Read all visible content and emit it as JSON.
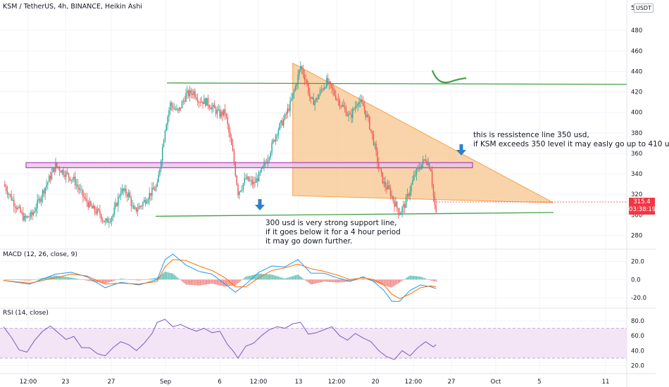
{
  "header": {
    "title": "KSM / TetherUS, 4h, BINANCE, Heikin Ashi",
    "currency": "USDT",
    "top_tick": "5"
  },
  "annotations": {
    "resistance": [
      "this is ressistence line 350 usd,",
      "if KSM exceeds 350 level it may easly go up to 410 u"
    ],
    "support": [
      "300 usd is very strong support line,",
      "if it goes below it for a 4 hour period",
      "it may go down further."
    ]
  },
  "last_price": {
    "value": "315.4",
    "countdown": "03:38:19"
  },
  "colors": {
    "up": "#26a69a",
    "down": "#ef5350",
    "trend_line": "#43a047",
    "triangle_fill": "#f7c58e",
    "triangle_stroke": "#f5a04a",
    "zone_fill": "#e7c3ea",
    "zone_stroke": "#9c27b0",
    "macd_line": "#2196f3",
    "signal_line": "#ff6d00",
    "rsi_line": "#7e57c2",
    "rsi_band": "#f3e5f5",
    "arrow": "#2f80c8"
  },
  "chart_data": [
    {
      "type": "candlestick",
      "title": "KSM / TetherUS, 4h, BINANCE, Heikin Ashi",
      "y_ticks": [
        280,
        300,
        320,
        340,
        360,
        380,
        400,
        420,
        440,
        460,
        480
      ],
      "ylim": [
        268,
        500
      ],
      "x_tick_labels": [
        "12:00",
        "23",
        "27",
        "Sep",
        "6",
        "12:00",
        "13",
        "12:00",
        "20",
        "12:00",
        "27",
        "Oct",
        "5",
        "11"
      ],
      "price_path": [
        [
          0,
          330
        ],
        [
          8,
          312
        ],
        [
          16,
          296
        ],
        [
          22,
          300
        ],
        [
          30,
          322
        ],
        [
          40,
          348
        ],
        [
          46,
          342
        ],
        [
          54,
          334
        ],
        [
          62,
          316
        ],
        [
          68,
          306
        ],
        [
          74,
          301
        ],
        [
          78,
          292
        ],
        [
          84,
          300
        ],
        [
          90,
          324
        ],
        [
          96,
          320
        ],
        [
          100,
          303
        ],
        [
          106,
          310
        ],
        [
          112,
          320
        ],
        [
          118,
          328
        ],
        [
          124,
          385
        ],
        [
          128,
          408
        ],
        [
          134,
          400
        ],
        [
          140,
          417
        ],
        [
          146,
          420
        ],
        [
          150,
          412
        ],
        [
          156,
          410
        ],
        [
          160,
          405
        ],
        [
          166,
          398
        ],
        [
          170,
          400
        ],
        [
          176,
          360
        ],
        [
          180,
          322
        ],
        [
          186,
          335
        ],
        [
          192,
          330
        ],
        [
          198,
          342
        ],
        [
          204,
          360
        ],
        [
          210,
          382
        ],
        [
          216,
          395
        ],
        [
          220,
          408
        ],
        [
          224,
          425
        ],
        [
          228,
          445
        ],
        [
          232,
          432
        ],
        [
          236,
          410
        ],
        [
          240,
          412
        ],
        [
          244,
          422
        ],
        [
          248,
          430
        ],
        [
          254,
          418
        ],
        [
          260,
          406
        ],
        [
          266,
          395
        ],
        [
          272,
          412
        ],
        [
          276,
          406
        ],
        [
          280,
          392
        ],
        [
          284,
          372
        ],
        [
          288,
          346
        ],
        [
          292,
          330
        ],
        [
          296,
          324
        ],
        [
          300,
          312
        ],
        [
          304,
          302
        ],
        [
          308,
          310
        ],
        [
          312,
          325
        ],
        [
          316,
          340
        ],
        [
          320,
          348
        ],
        [
          324,
          355
        ],
        [
          328,
          345
        ],
        [
          330,
          318
        ],
        [
          332,
          300
        ]
      ],
      "lines": [
        {
          "kind": "resistance-horizontal",
          "level": 428
        },
        {
          "kind": "support-rising",
          "from": 300,
          "to": 303
        },
        {
          "kind": "marked-zone",
          "from": 346,
          "to": 351
        },
        {
          "kind": "descending-triangle",
          "apex": 448,
          "base": 316
        }
      ]
    },
    {
      "type": "macd",
      "title": "MACD (12, 26, close, 9)",
      "y_ticks": [
        20.0,
        0.0,
        -20.0
      ],
      "ylim": [
        -30,
        32
      ],
      "macd": [
        [
          0,
          -1
        ],
        [
          20,
          -5
        ],
        [
          40,
          6
        ],
        [
          52,
          8
        ],
        [
          64,
          3
        ],
        [
          78,
          -9
        ],
        [
          90,
          -3
        ],
        [
          104,
          -6
        ],
        [
          118,
          0
        ],
        [
          124,
          22
        ],
        [
          130,
          28
        ],
        [
          140,
          16
        ],
        [
          150,
          9
        ],
        [
          160,
          6
        ],
        [
          170,
          -5
        ],
        [
          178,
          -14
        ],
        [
          186,
          -5
        ],
        [
          196,
          8
        ],
        [
          206,
          15
        ],
        [
          216,
          14
        ],
        [
          226,
          22
        ],
        [
          236,
          7
        ],
        [
          246,
          7
        ],
        [
          256,
          2
        ],
        [
          266,
          -2
        ],
        [
          276,
          3
        ],
        [
          284,
          -2
        ],
        [
          292,
          -12
        ],
        [
          298,
          -24
        ],
        [
          304,
          -24
        ],
        [
          312,
          -12
        ],
        [
          320,
          -6
        ],
        [
          328,
          -8
        ],
        [
          332,
          -10
        ]
      ],
      "signal": [
        [
          0,
          -1
        ],
        [
          20,
          -4
        ],
        [
          40,
          2
        ],
        [
          52,
          6
        ],
        [
          64,
          4
        ],
        [
          78,
          -5
        ],
        [
          90,
          -4
        ],
        [
          104,
          -5
        ],
        [
          118,
          -2
        ],
        [
          124,
          14
        ],
        [
          130,
          22
        ],
        [
          140,
          21
        ],
        [
          150,
          15
        ],
        [
          160,
          10
        ],
        [
          170,
          2
        ],
        [
          178,
          -8
        ],
        [
          186,
          -8
        ],
        [
          196,
          2
        ],
        [
          206,
          10
        ],
        [
          216,
          13
        ],
        [
          226,
          17
        ],
        [
          236,
          12
        ],
        [
          246,
          9
        ],
        [
          256,
          5
        ],
        [
          266,
          0
        ],
        [
          276,
          2
        ],
        [
          284,
          0
        ],
        [
          292,
          -6
        ],
        [
          298,
          -16
        ],
        [
          304,
          -21
        ],
        [
          312,
          -16
        ],
        [
          320,
          -9
        ],
        [
          328,
          -7
        ],
        [
          332,
          -8
        ]
      ]
    },
    {
      "type": "rsi",
      "title": "RSI (14, close)",
      "y_ticks": [
        80.0,
        60.0,
        40.0,
        20.0
      ],
      "ylim": [
        12,
        95
      ],
      "band": [
        30,
        70
      ],
      "rsi": [
        [
          0,
          72
        ],
        [
          6,
          58
        ],
        [
          12,
          41
        ],
        [
          18,
          38
        ],
        [
          24,
          54
        ],
        [
          30,
          66
        ],
        [
          36,
          73
        ],
        [
          42,
          64
        ],
        [
          48,
          55
        ],
        [
          54,
          59
        ],
        [
          60,
          44
        ],
        [
          66,
          44
        ],
        [
          72,
          36
        ],
        [
          78,
          33
        ],
        [
          84,
          44
        ],
        [
          90,
          52
        ],
        [
          96,
          48
        ],
        [
          102,
          40
        ],
        [
          108,
          50
        ],
        [
          114,
          63
        ],
        [
          118,
          78
        ],
        [
          124,
          82
        ],
        [
          130,
          72
        ],
        [
          136,
          75
        ],
        [
          142,
          70
        ],
        [
          148,
          66
        ],
        [
          154,
          70
        ],
        [
          160,
          64
        ],
        [
          166,
          66
        ],
        [
          172,
          48
        ],
        [
          176,
          40
        ],
        [
          180,
          30
        ],
        [
          186,
          46
        ],
        [
          192,
          50
        ],
        [
          198,
          60
        ],
        [
          204,
          68
        ],
        [
          210,
          72
        ],
        [
          216,
          70
        ],
        [
          222,
          76
        ],
        [
          228,
          78
        ],
        [
          234,
          62
        ],
        [
          240,
          64
        ],
        [
          246,
          68
        ],
        [
          252,
          72
        ],
        [
          258,
          60
        ],
        [
          264,
          54
        ],
        [
          270,
          63
        ],
        [
          276,
          57
        ],
        [
          282,
          52
        ],
        [
          288,
          40
        ],
        [
          294,
          32
        ],
        [
          300,
          28
        ],
        [
          306,
          40
        ],
        [
          312,
          33
        ],
        [
          318,
          44
        ],
        [
          324,
          52
        ],
        [
          330,
          45
        ],
        [
          332,
          48
        ]
      ]
    }
  ]
}
